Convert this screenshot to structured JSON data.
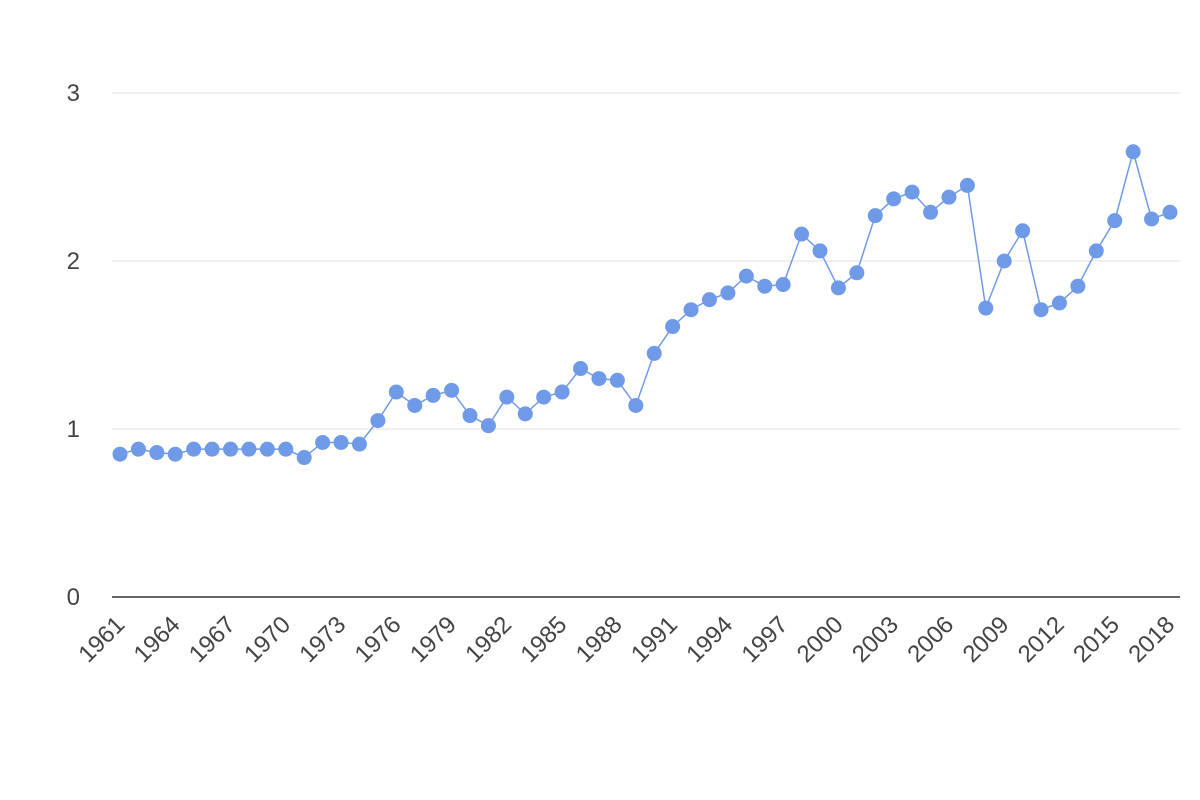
{
  "chart_data": {
    "type": "line",
    "title": "",
    "xlabel": "",
    "ylabel": "",
    "ylim": [
      0,
      3
    ],
    "yticks": [
      0,
      1,
      2,
      3
    ],
    "grid": true,
    "legend": "none",
    "x": [
      1961,
      1962,
      1963,
      1964,
      1965,
      1966,
      1967,
      1968,
      1969,
      1970,
      1971,
      1972,
      1973,
      1974,
      1975,
      1976,
      1977,
      1978,
      1979,
      1980,
      1981,
      1982,
      1983,
      1984,
      1985,
      1986,
      1987,
      1988,
      1989,
      1990,
      1991,
      1992,
      1993,
      1994,
      1995,
      1996,
      1997,
      1998,
      1999,
      2000,
      2001,
      2002,
      2003,
      2004,
      2005,
      2006,
      2007,
      2008,
      2009,
      2010,
      2011,
      2012,
      2013,
      2014,
      2015,
      2016,
      2017,
      2018
    ],
    "xtick_labels": [
      "1961",
      "1964",
      "1967",
      "1970",
      "1973",
      "1976",
      "1979",
      "1982",
      "1985",
      "1988",
      "1991",
      "1994",
      "1997",
      "2000",
      "2003",
      "2006",
      "2009",
      "2012",
      "2015",
      "2018"
    ],
    "series": [
      {
        "color": "#6f9ae8",
        "values": [
          0.85,
          0.88,
          0.86,
          0.85,
          0.88,
          0.88,
          0.88,
          0.88,
          0.88,
          0.88,
          0.83,
          0.92,
          0.92,
          0.91,
          1.05,
          1.22,
          1.14,
          1.2,
          1.23,
          1.08,
          1.02,
          1.19,
          1.09,
          1.19,
          1.22,
          1.36,
          1.3,
          1.29,
          1.14,
          1.45,
          1.61,
          1.71,
          1.77,
          1.81,
          1.91,
          1.85,
          1.86,
          2.16,
          2.06,
          1.84,
          1.93,
          2.27,
          2.37,
          2.41,
          2.29,
          2.38,
          2.45,
          1.72,
          2.0,
          2.18,
          1.71,
          1.75,
          1.85,
          2.06,
          2.24,
          2.65,
          2.25,
          2.29
        ]
      }
    ]
  }
}
